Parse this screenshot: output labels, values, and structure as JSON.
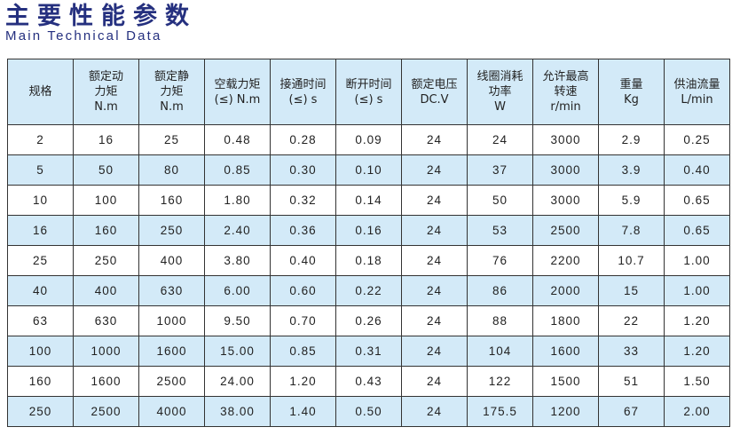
{
  "title": {
    "cn": "主要性能参数",
    "en": "Main Technical Data"
  },
  "colors": {
    "title": "#25307f",
    "header_bg": "#d3eaf8",
    "alt_row_bg": "#d3eaf8"
  },
  "headers": [
    [
      "规格"
    ],
    [
      "额定动",
      "力矩",
      "N.m"
    ],
    [
      "额定静",
      "力矩",
      "N.m"
    ],
    [
      "空载力矩",
      "(≤) N.m"
    ],
    [
      "接通时间",
      "(≤) s"
    ],
    [
      "断开时间",
      "(≤) s"
    ],
    [
      "额定电压",
      "DC.V"
    ],
    [
      "线圈消耗",
      "功率",
      "W"
    ],
    [
      "允许最高",
      "转速",
      "r/min"
    ],
    [
      "重量",
      "Kg"
    ],
    [
      "供油流量",
      "L/min"
    ]
  ],
  "rows": [
    [
      "2",
      "16",
      "25",
      "0.48",
      "0.28",
      "0.09",
      "24",
      "24",
      "3000",
      "2.9",
      "0.25"
    ],
    [
      "5",
      "50",
      "80",
      "0.85",
      "0.30",
      "0.10",
      "24",
      "37",
      "3000",
      "3.9",
      "0.40"
    ],
    [
      "10",
      "100",
      "160",
      "1.80",
      "0.32",
      "0.14",
      "24",
      "50",
      "3000",
      "5.9",
      "0.65"
    ],
    [
      "16",
      "160",
      "250",
      "2.40",
      "0.36",
      "0.16",
      "24",
      "53",
      "2500",
      "7.8",
      "0.65"
    ],
    [
      "25",
      "250",
      "400",
      "3.80",
      "0.40",
      "0.18",
      "24",
      "76",
      "2200",
      "10.7",
      "1.00"
    ],
    [
      "40",
      "400",
      "630",
      "6.00",
      "0.60",
      "0.22",
      "24",
      "86",
      "2000",
      "15",
      "1.00"
    ],
    [
      "63",
      "630",
      "1000",
      "9.50",
      "0.70",
      "0.26",
      "24",
      "88",
      "1800",
      "22",
      "1.20"
    ],
    [
      "100",
      "1000",
      "1600",
      "15.00",
      "0.85",
      "0.31",
      "24",
      "104",
      "1600",
      "33",
      "1.20"
    ],
    [
      "160",
      "1600",
      "2500",
      "24.00",
      "1.20",
      "0.43",
      "24",
      "122",
      "1500",
      "51",
      "1.50"
    ],
    [
      "250",
      "2500",
      "4000",
      "38.00",
      "1.40",
      "0.50",
      "24",
      "175.5",
      "1200",
      "67",
      "2.00"
    ]
  ]
}
